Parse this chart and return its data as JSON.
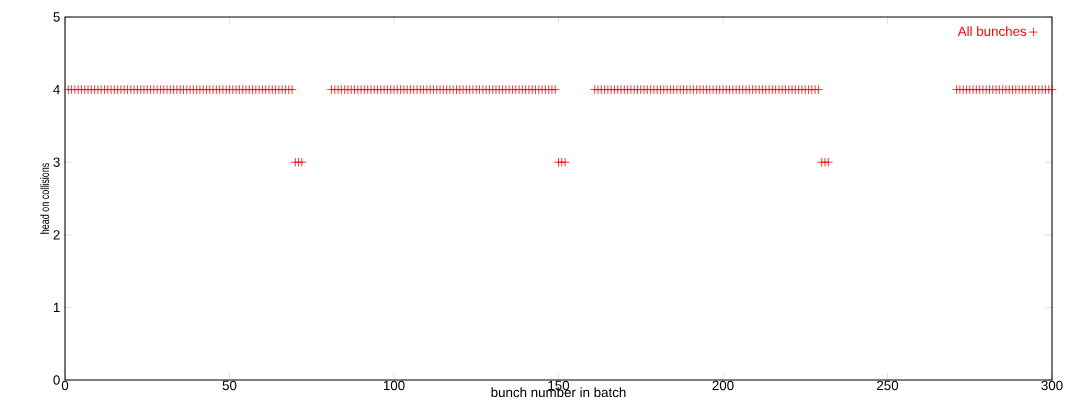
{
  "chart_data": {
    "type": "scatter",
    "xlabel": "bunch number in batch",
    "ylabel": "head on collisions",
    "xlim": [
      0,
      300
    ],
    "ylim": [
      0,
      5
    ],
    "xticks": [
      0,
      50,
      100,
      150,
      200,
      250,
      300
    ],
    "yticks": [
      0,
      1,
      2,
      3,
      4,
      5
    ],
    "grid": false,
    "legend": "top right",
    "marker": "cross",
    "x": [
      1,
      2,
      3,
      4,
      5,
      6,
      7,
      8,
      9,
      10,
      11,
      12,
      13,
      14,
      15,
      16,
      17,
      18,
      19,
      20,
      21,
      22,
      23,
      24,
      25,
      26,
      27,
      28,
      29,
      30,
      31,
      32,
      33,
      34,
      35,
      36,
      37,
      38,
      39,
      40,
      41,
      42,
      43,
      44,
      45,
      46,
      47,
      48,
      49,
      50,
      51,
      52,
      53,
      54,
      55,
      56,
      57,
      58,
      59,
      60,
      61,
      62,
      63,
      64,
      65,
      66,
      67,
      68,
      69,
      70,
      71,
      72,
      81,
      82,
      83,
      84,
      85,
      86,
      87,
      88,
      89,
      90,
      91,
      92,
      93,
      94,
      95,
      96,
      97,
      98,
      99,
      100,
      101,
      102,
      103,
      104,
      105,
      106,
      107,
      108,
      109,
      110,
      111,
      112,
      113,
      114,
      115,
      116,
      117,
      118,
      119,
      120,
      121,
      122,
      123,
      124,
      125,
      126,
      127,
      128,
      129,
      130,
      131,
      132,
      133,
      134,
      135,
      136,
      137,
      138,
      139,
      140,
      141,
      142,
      143,
      144,
      145,
      146,
      147,
      148,
      149,
      150,
      151,
      152,
      161,
      162,
      163,
      164,
      165,
      166,
      167,
      168,
      169,
      170,
      171,
      172,
      173,
      174,
      175,
      176,
      177,
      178,
      179,
      180,
      181,
      182,
      183,
      184,
      185,
      186,
      187,
      188,
      189,
      190,
      191,
      192,
      193,
      194,
      195,
      196,
      197,
      198,
      199,
      200,
      201,
      202,
      203,
      204,
      205,
      206,
      207,
      208,
      209,
      210,
      211,
      212,
      213,
      214,
      215,
      216,
      217,
      218,
      219,
      220,
      221,
      222,
      223,
      224,
      225,
      226,
      227,
      228,
      229,
      230,
      231,
      232,
      271,
      272,
      273,
      274,
      275,
      276,
      277,
      278,
      279,
      280,
      281,
      282,
      283,
      284,
      285,
      286,
      287,
      288,
      289,
      290,
      291,
      292,
      293,
      294,
      295,
      296,
      297,
      298,
      299,
      300
    ],
    "series": [
      {
        "name": "All bunches",
        "color": "#ff0000",
        "values": [
          4,
          4,
          4,
          4,
          4,
          4,
          4,
          4,
          4,
          4,
          4,
          4,
          4,
          4,
          4,
          4,
          4,
          4,
          4,
          4,
          4,
          4,
          4,
          4,
          4,
          4,
          4,
          4,
          4,
          4,
          4,
          4,
          4,
          4,
          4,
          4,
          4,
          4,
          4,
          4,
          4,
          4,
          4,
          4,
          4,
          4,
          4,
          4,
          4,
          4,
          4,
          4,
          4,
          4,
          4,
          4,
          4,
          4,
          4,
          4,
          4,
          4,
          4,
          4,
          4,
          4,
          4,
          4,
          4,
          3,
          3,
          3,
          4,
          4,
          4,
          4,
          4,
          4,
          4,
          4,
          4,
          4,
          4,
          4,
          4,
          4,
          4,
          4,
          4,
          4,
          4,
          4,
          4,
          4,
          4,
          4,
          4,
          4,
          4,
          4,
          4,
          4,
          4,
          4,
          4,
          4,
          4,
          4,
          4,
          4,
          4,
          4,
          4,
          4,
          4,
          4,
          4,
          4,
          4,
          4,
          4,
          4,
          4,
          4,
          4,
          4,
          4,
          4,
          4,
          4,
          4,
          4,
          4,
          4,
          4,
          4,
          4,
          4,
          4,
          4,
          4,
          3,
          3,
          3,
          4,
          4,
          4,
          4,
          4,
          4,
          4,
          4,
          4,
          4,
          4,
          4,
          4,
          4,
          4,
          4,
          4,
          4,
          4,
          4,
          4,
          4,
          4,
          4,
          4,
          4,
          4,
          4,
          4,
          4,
          4,
          4,
          4,
          4,
          4,
          4,
          4,
          4,
          4,
          4,
          4,
          4,
          4,
          4,
          4,
          4,
          4,
          4,
          4,
          4,
          4,
          4,
          4,
          4,
          4,
          4,
          4,
          4,
          4,
          4,
          4,
          4,
          4,
          4,
          4,
          4,
          4,
          4,
          4,
          3,
          3,
          3,
          4,
          4,
          4,
          4,
          4,
          4,
          4,
          4,
          4,
          4,
          4,
          4,
          4,
          4,
          4,
          4,
          4,
          4,
          4,
          4,
          4,
          4,
          4,
          4,
          4,
          4,
          4,
          4,
          4,
          4
        ]
      }
    ]
  }
}
